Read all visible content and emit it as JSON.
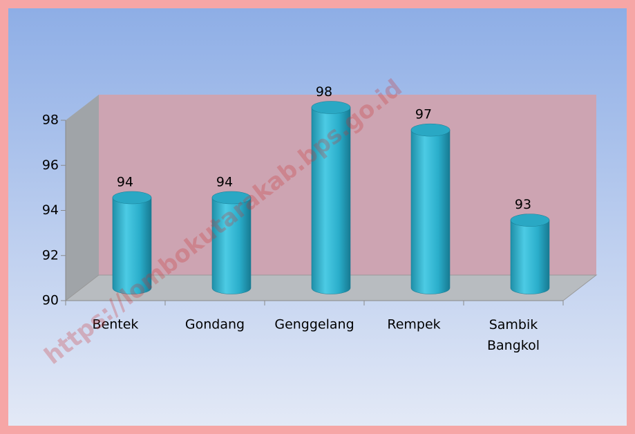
{
  "chart_data": {
    "type": "bar",
    "categories": [
      "Bentek",
      "Gondang",
      "Genggelang",
      "Rempek",
      "Sambik Bangkol"
    ],
    "values": [
      94,
      94,
      98,
      97,
      93
    ],
    "color": "#2fb3cf",
    "ylim": [
      90,
      98
    ],
    "yticks": [
      90,
      92,
      94,
      96,
      98
    ],
    "grid": false,
    "watermark": "https://lombokutarakab.bps.go.id"
  }
}
